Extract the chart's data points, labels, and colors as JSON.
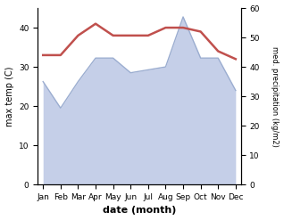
{
  "months": [
    "Jan",
    "Feb",
    "Mar",
    "Apr",
    "May",
    "Jun",
    "Jul",
    "Aug",
    "Sep",
    "Oct",
    "Nov",
    "Dec"
  ],
  "temperature": [
    33,
    33,
    38,
    41,
    38,
    38,
    38,
    40,
    40,
    39,
    34,
    32
  ],
  "precipitation": [
    35,
    26,
    35,
    43,
    43,
    38,
    39,
    40,
    57,
    43,
    43,
    32
  ],
  "temp_color": "#c0504d",
  "precip_color": "#9badd0",
  "precip_fill_color": "#c5cfe8",
  "precip_fill_alpha": 1.0,
  "ylabel_left": "max temp (C)",
  "ylabel_right": "med. precipitation (kg/m2)",
  "xlabel": "date (month)",
  "ylim_left": [
    0,
    45
  ],
  "ylim_right": [
    0,
    60
  ],
  "yticks_left": [
    0,
    10,
    20,
    30,
    40
  ],
  "yticks_right": [
    0,
    10,
    20,
    30,
    40,
    50,
    60
  ],
  "background_color": "#ffffff"
}
